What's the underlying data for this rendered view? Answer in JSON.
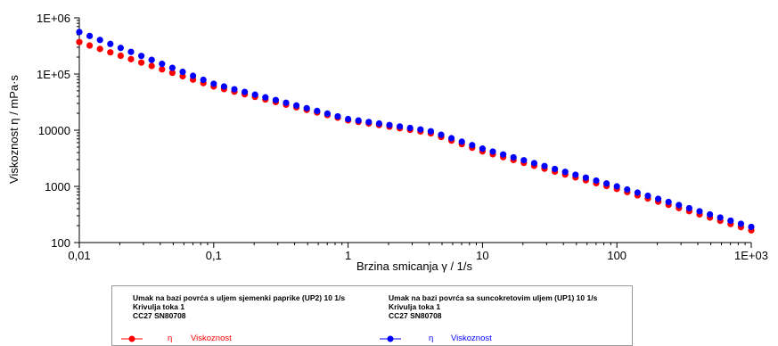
{
  "chart_data": {
    "type": "scatter",
    "x_scale": "log",
    "y_scale": "log",
    "xlim": [
      0.01,
      1000
    ],
    "ylim": [
      100,
      1000000
    ],
    "xlabel": "Brzina smicanja  γ / 1/s",
    "ylabel": "Viskoznost η / mPa·s",
    "x_tick_labels": [
      "0,01",
      "0,1",
      "1",
      "10",
      "100",
      "1E+03"
    ],
    "y_tick_labels": [
      "100",
      "1000",
      "10000",
      "1E+05",
      "1E+06"
    ],
    "series": [
      {
        "name": "Viskoznost",
        "color": "#ff0000",
        "anchor_points": [
          [
            0.01,
            370000
          ],
          [
            0.1,
            60000
          ],
          [
            1,
            15000
          ],
          [
            4,
            9000
          ],
          [
            10,
            4200
          ],
          [
            100,
            900
          ],
          [
            1000,
            165
          ]
        ]
      },
      {
        "name": "Viskoznost",
        "color": "#0000ff",
        "anchor_points": [
          [
            0.01,
            560000
          ],
          [
            0.1,
            67000
          ],
          [
            1,
            15800
          ],
          [
            4,
            9800
          ],
          [
            10,
            4700
          ],
          [
            100,
            1000
          ],
          [
            1000,
            190
          ]
        ]
      }
    ],
    "legend": [
      {
        "title": "Umak na bazi povrća s uljem sjemenki paprike (UP2) 10 1/s",
        "line2": "Krivulja toka 1",
        "line3": "CC27  SN80708",
        "symbol": "η",
        "label": "Viskoznost",
        "color": "#ff0000"
      },
      {
        "title": "Umak na bazi povrća sa suncokretovim uljem (UP1) 10 1/s",
        "line2": "Krivulja toka 1",
        "line3": "CC27  SN80708",
        "symbol": "η",
        "label": "Viskoznost",
        "color": "#0000ff"
      }
    ],
    "grid": false,
    "legend_position": "bottom"
  }
}
